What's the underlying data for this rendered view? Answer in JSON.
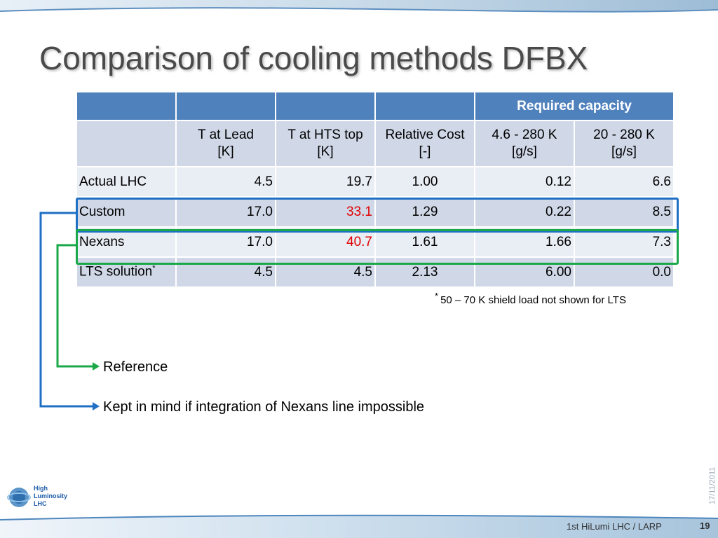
{
  "slide": {
    "title": "Comparison of cooling methods DFBX",
    "footer": "1st  HiLumi LHC / LARP",
    "page_number": "19",
    "date": "17/11/2011",
    "logo": {
      "line1": "High",
      "line2": "Luminosity",
      "line3": "LHC"
    }
  },
  "table": {
    "group_header": "Required capacity",
    "columns": [
      {
        "line1": "T at Lead",
        "line2": "[K]"
      },
      {
        "line1": "T at HTS top",
        "line2": "[K]"
      },
      {
        "line1": "Relative Cost",
        "line2": "[-]"
      },
      {
        "line1": "4.6 - 280 K",
        "line2": "[g/s]"
      },
      {
        "line1": "20 - 280 K",
        "line2": "[g/s]"
      }
    ],
    "rows": [
      {
        "label": "Actual LHC",
        "t_lead": "4.5",
        "t_hts": "19.7",
        "cost": "1.00",
        "cap1": "0.12",
        "cap2": "6.6"
      },
      {
        "label": "Custom",
        "t_lead": "17.0",
        "t_hts": "33.1",
        "cost": "1.29",
        "cap1": "0.22",
        "cap2": "8.5"
      },
      {
        "label": "Nexans",
        "t_lead": "17.0",
        "t_hts": "40.7",
        "cost": "1.61",
        "cap1": "1.66",
        "cap2": "7.3"
      },
      {
        "label": "LTS solution",
        "label_sup": "*",
        "t_lead": "4.5",
        "t_hts": "4.5",
        "cost": "2.13",
        "cap1": "6.00",
        "cap2": "0.0"
      }
    ]
  },
  "footnote": {
    "marker": "*",
    "text": "50 – 70 K shield load not shown for LTS"
  },
  "notes": {
    "reference": "Reference",
    "kept_in_mind": "Kept in mind if integration of Nexans line impossible"
  },
  "colors": {
    "header_blue": "#4f81bd",
    "highlight_red": "#e00000",
    "box_blue": "#1f6fc5",
    "box_green": "#1aa849"
  }
}
